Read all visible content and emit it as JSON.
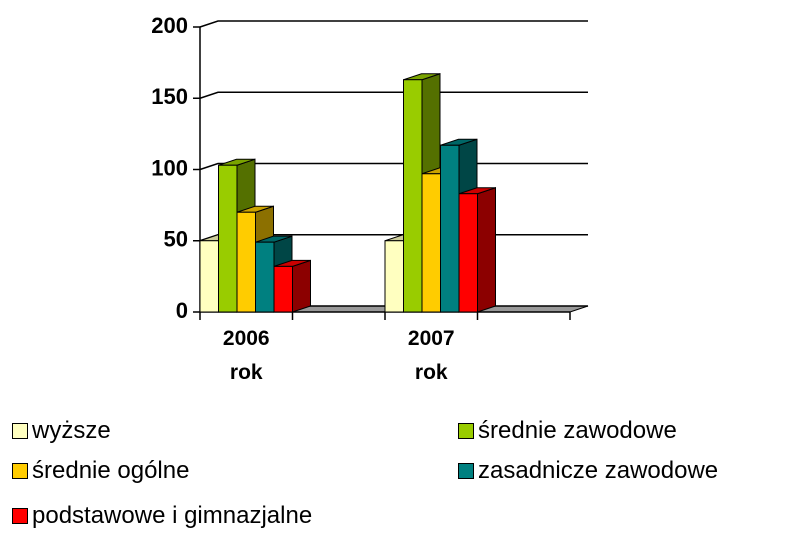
{
  "chart_data": {
    "type": "bar3d",
    "categories": [
      "2006 rok",
      "2007 rok"
    ],
    "series": [
      {
        "name": "wyższe",
        "color": "#ffffc0",
        "values": [
          50,
          50
        ]
      },
      {
        "name": "średnie zawodowe",
        "color": "#99cc00",
        "values": [
          103,
          163
        ]
      },
      {
        "name": "średnie ogólne",
        "color": "#ffcc00",
        "values": [
          70,
          97
        ]
      },
      {
        "name": "zasadnicze zawodowe",
        "color": "#008080",
        "values": [
          49,
          117
        ]
      },
      {
        "name": "podstawowe i gimnazjalne",
        "color": "#ff0000",
        "values": [
          32,
          83
        ]
      }
    ],
    "ylim": [
      0,
      200
    ],
    "yticks": [
      0,
      50,
      100,
      150,
      200
    ],
    "grid": true
  }
}
